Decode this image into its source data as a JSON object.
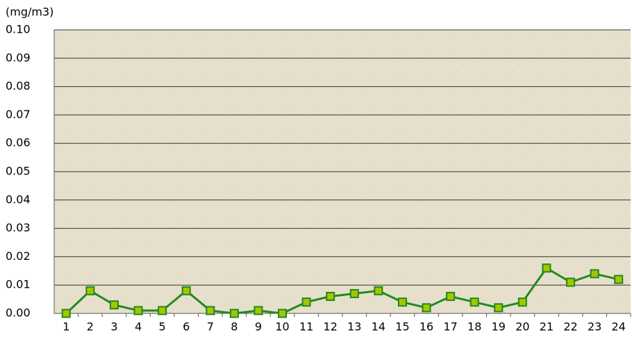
{
  "chart_data": {
    "type": "line",
    "y_axis_label": "(mg/m3)",
    "categories": [
      "1",
      "2",
      "3",
      "4",
      "5",
      "6",
      "7",
      "8",
      "9",
      "10",
      "11",
      "12",
      "13",
      "14",
      "15",
      "16",
      "17",
      "18",
      "19",
      "20",
      "21",
      "22",
      "23",
      "24"
    ],
    "values": [
      0,
      0.008,
      0.003,
      0.001,
      0.001,
      0.008,
      0.001,
      0,
      0.001,
      0,
      0.004,
      0.006,
      0.007,
      0.008,
      0.004,
      0.002,
      0.006,
      0.004,
      0.002,
      0.004,
      0.016,
      0.011,
      0.014,
      0.012
    ],
    "color": "#1f8a1f",
    "marker_color": "#a8c400",
    "ylim": [
      0,
      0.1
    ],
    "yticks": [
      {
        "value": 0,
        "label": "0.00"
      },
      {
        "value": 0.01,
        "label": "0.01"
      },
      {
        "value": 0.02,
        "label": "0.02"
      },
      {
        "value": 0.03,
        "label": "0.03"
      },
      {
        "value": 0.04,
        "label": "0.04"
      },
      {
        "value": 0.05,
        "label": "0.05"
      },
      {
        "value": 0.06,
        "label": "0.06"
      },
      {
        "value": 0.07,
        "label": "0.07"
      },
      {
        "value": 0.08,
        "label": "0.08"
      },
      {
        "value": 0.09,
        "label": "0.09"
      },
      {
        "value": 0.1,
        "label": "0.10"
      }
    ],
    "grid": true
  }
}
